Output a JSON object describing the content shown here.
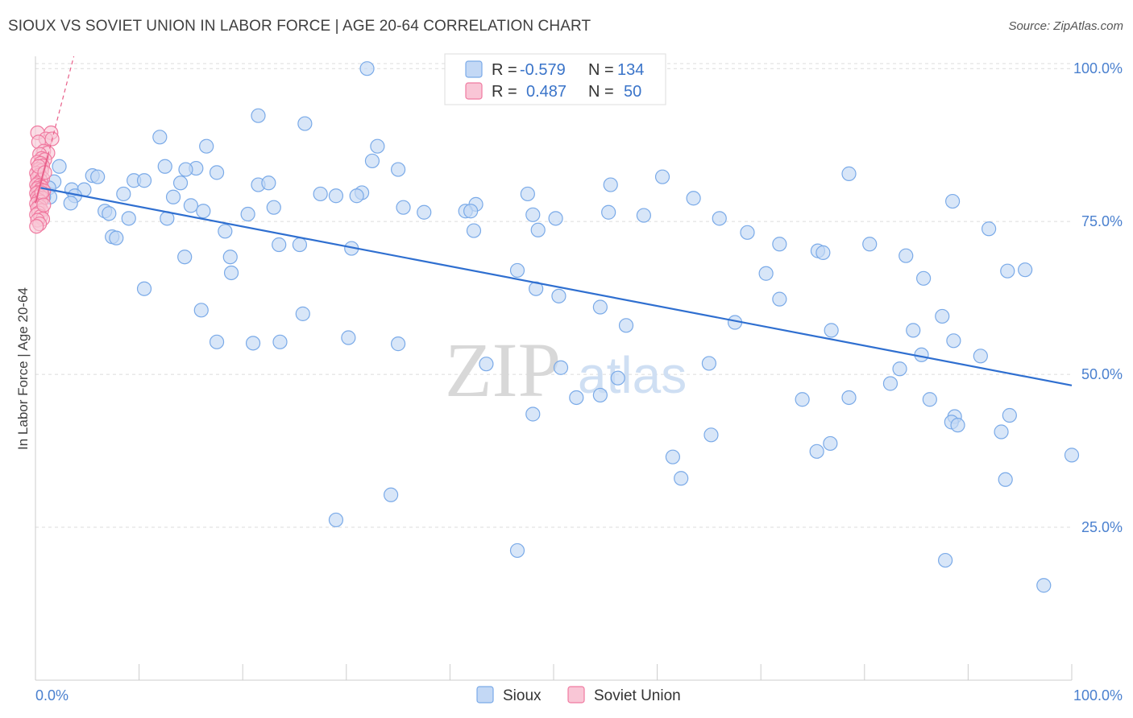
{
  "title": "SIOUX VS SOVIET UNION IN LABOR FORCE | AGE 20-64 CORRELATION CHART",
  "source": "Source: ZipAtlas.com",
  "watermark": {
    "zip": "ZIP",
    "atlas": "atlas"
  },
  "colors": {
    "sioux": "#7aaae8",
    "sioux_fill": "#c3d8f5",
    "soviet": "#f07aa0",
    "soviet_fill": "#f9c6d6",
    "trend_sioux": "#2f6fd0",
    "trend_soviet": "#e8608a",
    "tick": "#4a80cf"
  },
  "legend": {
    "rows": [
      {
        "r_label": "R =",
        "r_value": "-0.579",
        "n_label": "N =",
        "n_value": "134"
      },
      {
        "r_label": "R =",
        "r_value": "0.487",
        "n_label": "N =",
        "n_value": "50"
      }
    ]
  },
  "bottom_legend": [
    "Sioux",
    "Soviet Union"
  ],
  "chart_data": {
    "type": "scatter",
    "xlabel": "",
    "ylabel": "In Labor Force | Age 20-64",
    "xlim": [
      0,
      100
    ],
    "ylim": [
      0,
      102
    ],
    "x_tick_labels": [
      "0.0%",
      "100.0%"
    ],
    "y_ticks": [
      25,
      50,
      75,
      100
    ],
    "y_tick_labels": [
      "25.0%",
      "50.0%",
      "75.0%",
      "100.0%"
    ],
    "grid": true,
    "legend_position": "top-center",
    "series": [
      {
        "name": "Sioux",
        "trend": {
          "x": [
            0.5,
            100
          ],
          "y": [
            80.5,
            48.2
          ]
        },
        "points": [
          [
            32,
            100
          ],
          [
            21.5,
            92.3
          ],
          [
            26,
            91
          ],
          [
            12,
            88.8
          ],
          [
            16.5,
            87.3
          ],
          [
            33,
            87.3
          ],
          [
            32.5,
            84.9
          ],
          [
            2.3,
            84
          ],
          [
            12.5,
            84
          ],
          [
            15.5,
            83.7
          ],
          [
            14.5,
            83.5
          ],
          [
            35,
            83.5
          ],
          [
            17.5,
            83
          ],
          [
            5.5,
            82.5
          ],
          [
            6,
            82.3
          ],
          [
            9.5,
            81.7
          ],
          [
            10.5,
            81.7
          ],
          [
            1.8,
            81.5
          ],
          [
            21.5,
            81
          ],
          [
            22.5,
            81.3
          ],
          [
            14,
            81.3
          ],
          [
            55.5,
            81
          ],
          [
            60.5,
            82.3
          ],
          [
            78.5,
            82.8
          ],
          [
            3.5,
            80.2
          ],
          [
            1.3,
            80.5
          ],
          [
            4.7,
            80.2
          ],
          [
            8.5,
            79.5
          ],
          [
            27.5,
            79.5
          ],
          [
            31.5,
            79.7
          ],
          [
            47.5,
            79.5
          ],
          [
            1.4,
            79
          ],
          [
            0.8,
            79
          ],
          [
            3.8,
            79.2
          ],
          [
            13.3,
            79
          ],
          [
            29,
            79.2
          ],
          [
            31,
            79.2
          ],
          [
            63.5,
            78.8
          ],
          [
            88.5,
            78.3
          ],
          [
            3.4,
            78
          ],
          [
            15,
            77.6
          ],
          [
            42.5,
            77.8
          ],
          [
            23,
            77.3
          ],
          [
            35.5,
            77.3
          ],
          [
            37.5,
            76.5
          ],
          [
            41.5,
            76.7
          ],
          [
            42,
            76.7
          ],
          [
            16.2,
            76.7
          ],
          [
            6.7,
            76.7
          ],
          [
            7.1,
            76.3
          ],
          [
            20.5,
            76.2
          ],
          [
            48,
            76.1
          ],
          [
            55.3,
            76.5
          ],
          [
            58.7,
            76
          ],
          [
            9,
            75.5
          ],
          [
            12.7,
            75.5
          ],
          [
            50.2,
            75.5
          ],
          [
            66,
            75.5
          ],
          [
            42.3,
            73.5
          ],
          [
            48.5,
            73.6
          ],
          [
            68.7,
            73.2
          ],
          [
            18.3,
            73.4
          ],
          [
            92,
            73.8
          ],
          [
            7.4,
            72.5
          ],
          [
            7.8,
            72.3
          ],
          [
            23.5,
            71.2
          ],
          [
            25.5,
            71.2
          ],
          [
            30.5,
            70.6
          ],
          [
            71.8,
            71.3
          ],
          [
            75.5,
            70.2
          ],
          [
            80.5,
            71.3
          ],
          [
            84,
            69.4
          ],
          [
            76,
            69.9
          ],
          [
            14.4,
            69.2
          ],
          [
            18.8,
            69.2
          ],
          [
            46.5,
            67
          ],
          [
            93.8,
            66.9
          ],
          [
            95.5,
            67.1
          ],
          [
            70.5,
            66.5
          ],
          [
            85.7,
            65.7
          ],
          [
            18.9,
            66.6
          ],
          [
            10.5,
            64
          ],
          [
            48.3,
            64
          ],
          [
            50.5,
            62.8
          ],
          [
            71.8,
            62.3
          ],
          [
            54.5,
            61
          ],
          [
            16,
            60.5
          ],
          [
            25.8,
            59.9
          ],
          [
            87.5,
            59.5
          ],
          [
            67.5,
            58.5
          ],
          [
            57,
            58
          ],
          [
            76.8,
            57.2
          ],
          [
            84.7,
            57.2
          ],
          [
            88.6,
            55.5
          ],
          [
            23.6,
            55.3
          ],
          [
            30.2,
            56
          ],
          [
            17.5,
            55.3
          ],
          [
            21,
            55.1
          ],
          [
            35,
            55
          ],
          [
            85.5,
            53.2
          ],
          [
            91.2,
            53
          ],
          [
            65,
            51.8
          ],
          [
            43.5,
            51.7
          ],
          [
            50.7,
            51.1
          ],
          [
            83.4,
            50.9
          ],
          [
            56.2,
            49.4
          ],
          [
            82.5,
            48.5
          ],
          [
            52.2,
            46.2
          ],
          [
            54.5,
            46.6
          ],
          [
            74,
            45.9
          ],
          [
            78.5,
            46.2
          ],
          [
            86.3,
            45.9
          ],
          [
            48,
            43.5
          ],
          [
            88.7,
            43.1
          ],
          [
            94,
            43.3
          ],
          [
            88.4,
            42.2
          ],
          [
            89,
            41.7
          ],
          [
            65.2,
            40.1
          ],
          [
            93.2,
            40.6
          ],
          [
            75.4,
            37.4
          ],
          [
            76.7,
            38.7
          ],
          [
            100,
            36.8
          ],
          [
            61.5,
            36.5
          ],
          [
            62.3,
            33
          ],
          [
            93.6,
            32.8
          ],
          [
            34.3,
            30.3
          ],
          [
            29,
            26.2
          ],
          [
            46.5,
            21.2
          ],
          [
            87.8,
            19.6
          ],
          [
            97.3,
            15.5
          ]
        ]
      },
      {
        "name": "Soviet Union",
        "trend": {
          "x": [
            0,
            3.7
          ],
          "y": [
            78,
            102
          ]
        },
        "points": [
          [
            0.2,
            89.5
          ],
          [
            1.5,
            89.5
          ],
          [
            1,
            88.5
          ],
          [
            1.6,
            88.5
          ],
          [
            0.3,
            88
          ],
          [
            0.8,
            86.5
          ],
          [
            1.2,
            86.2
          ],
          [
            0.4,
            86
          ],
          [
            0.6,
            85.3
          ],
          [
            0.9,
            85.1
          ],
          [
            0.2,
            84.7
          ],
          [
            0.5,
            84.5
          ],
          [
            0.7,
            84.1
          ],
          [
            0.3,
            83.5
          ],
          [
            0.6,
            83.3
          ],
          [
            0.1,
            82.9
          ],
          [
            0.4,
            82.6
          ],
          [
            0.2,
            82.2
          ],
          [
            0.7,
            82
          ],
          [
            0.5,
            81.7
          ],
          [
            0.3,
            81.3
          ],
          [
            0.1,
            81
          ],
          [
            0.4,
            80.8
          ],
          [
            0.6,
            80.6
          ],
          [
            0.2,
            80.4
          ],
          [
            0.5,
            80.2
          ],
          [
            0.8,
            80
          ],
          [
            0.3,
            79.8
          ],
          [
            0.1,
            79.6
          ],
          [
            0.6,
            79.4
          ],
          [
            0.4,
            79.2
          ],
          [
            0.2,
            79
          ],
          [
            0.7,
            78.8
          ],
          [
            0.3,
            78.5
          ],
          [
            0.5,
            78.2
          ],
          [
            0.1,
            77.9
          ],
          [
            0.4,
            77.5
          ],
          [
            0.2,
            77.2
          ],
          [
            0.6,
            76.8
          ],
          [
            0.3,
            76.4
          ],
          [
            0.1,
            76.1
          ],
          [
            0.5,
            75.8
          ],
          [
            0.7,
            75.4
          ],
          [
            0.2,
            75.2
          ],
          [
            0.4,
            74.6
          ],
          [
            0.1,
            74.2
          ],
          [
            0.3,
            84
          ],
          [
            0.9,
            83
          ],
          [
            0.6,
            79.7
          ],
          [
            0.8,
            77.7
          ]
        ]
      }
    ]
  }
}
